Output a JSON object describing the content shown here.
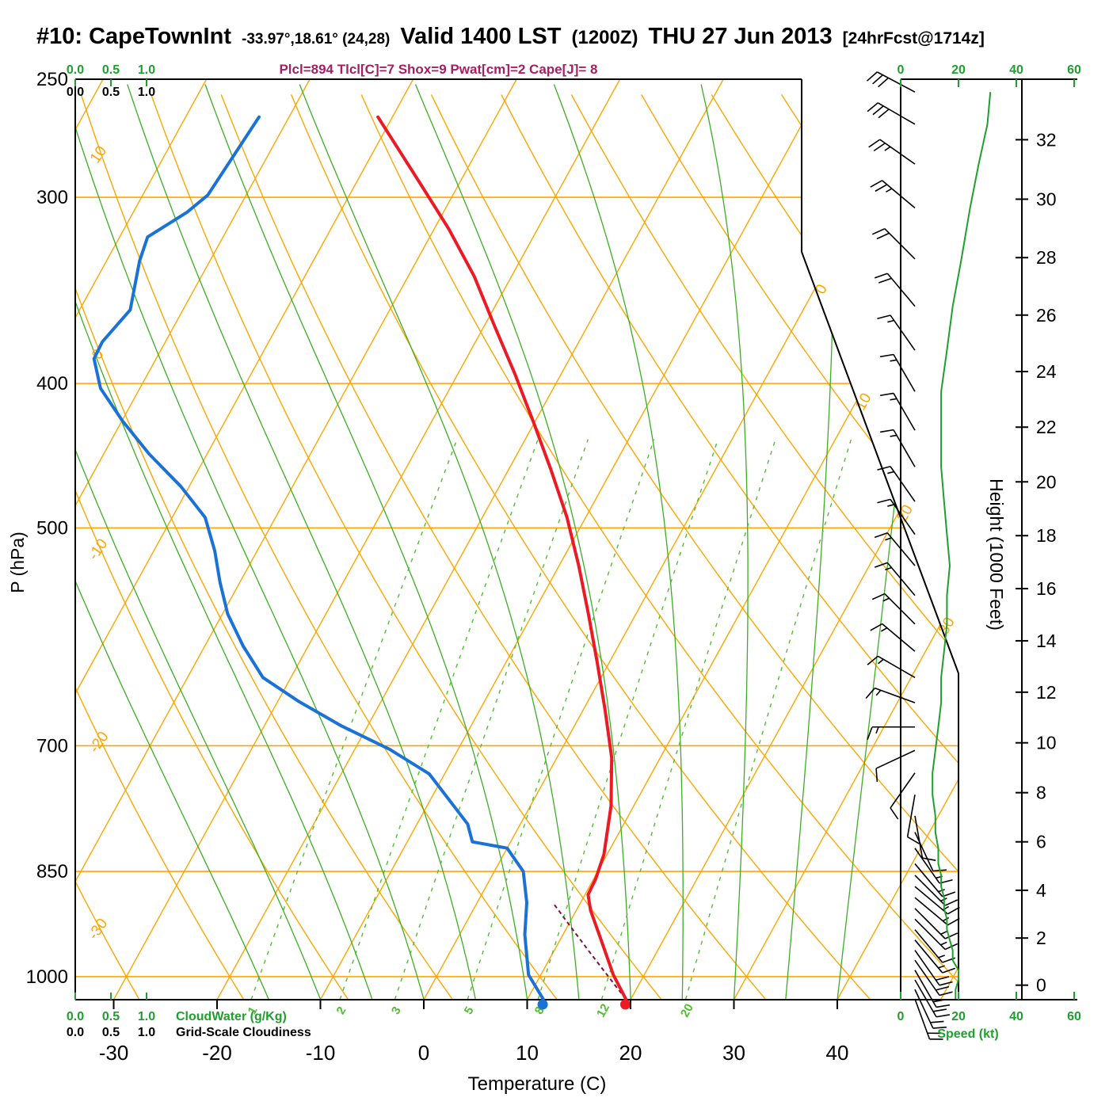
{
  "header": {
    "station": "#10: CapeTownInt",
    "coords": "-33.97°,18.61° (24,28)",
    "valid": "Valid 1400 LST",
    "valid_z": "(1200Z)",
    "date": "THU 27 Jun 2013",
    "fcst_tag": "[24hrFcst@1714z]",
    "indices": "Plcl=894 Tlcl[C]=7 Shox=9 Pwat[cm]=2 Cape[J]= 8"
  },
  "labels": {
    "pressure_axis": "P (hPa)",
    "temp_axis": "Temperature (C)",
    "height_axis": "Height (1000 Feet)",
    "speed_axis": "Speed (kt)",
    "cloudwater": "CloudWater (g/Kg)",
    "cloudiness": "Grid-Scale Cloudiness"
  },
  "colors": {
    "grid_orange": "#FFA500",
    "moist_green": "#3BAE23",
    "mix_green": "#52BE33",
    "temp_red": "#EB1A24",
    "dew_blue": "#1B72D6",
    "indices_magenta": "#A81E60",
    "parcel_maroon": "#7A1240",
    "speed_green": "#1FA02E",
    "axis_black": "#000000"
  },
  "chart_data": {
    "type": "line",
    "subtype": "skewT-logP-sounding",
    "title": "#10: CapeTownInt Valid 1400 LST (1200Z) THU 27 Jun 2013",
    "pressure_ticks_hpa": [
      250,
      300,
      400,
      500,
      700,
      850,
      1000
    ],
    "temp_ticks_c": [
      -30,
      -20,
      -10,
      0,
      10,
      20,
      30,
      40
    ],
    "height_ticks_kft": [
      0,
      2,
      4,
      6,
      8,
      10,
      12,
      14,
      16,
      18,
      20,
      22,
      24,
      26,
      28,
      30,
      32
    ],
    "speed_ticks_kt": [
      0,
      20,
      40,
      60
    ],
    "cloud_scale_ticks": [
      "0.0",
      "0.5",
      "1.0"
    ],
    "isotherm_labels_right_c": [
      0,
      10,
      20,
      30
    ],
    "dry_adiabat_labels_left_c": [
      10,
      0,
      -10,
      -20,
      -30
    ],
    "mixing_ratio_labels_gkg": [
      1,
      2,
      3,
      5,
      8,
      12,
      20
    ],
    "isotherms_c": {
      "min": -90,
      "max": 50,
      "step": 10
    },
    "dry_adiabats_c": {
      "min": -40,
      "max": 110,
      "step": 10
    },
    "moist_adiabats_c": {
      "min": -15,
      "max": 40,
      "step": 5
    },
    "pressure_range_hpa": [
      250,
      1036
    ],
    "surface_pressure_hpa": 1035,
    "surface_temp_c": 19.5,
    "surface_dewpoint_c": 11.5,
    "lcl_pressure_hpa": 894,
    "lcl_temp_c": 7,
    "temperature_profile_p_t": [
      [
        1035,
        19.5
      ],
      [
        997,
        17.0
      ],
      [
        937,
        13.5
      ],
      [
        903,
        11.4
      ],
      [
        881,
        10.3
      ],
      [
        860,
        10.2
      ],
      [
        828,
        9.7
      ],
      [
        768,
        7.8
      ],
      [
        713,
        5.3
      ],
      [
        662,
        2.1
      ],
      [
        615,
        -1.2
      ],
      [
        571,
        -4.6
      ],
      [
        530,
        -8.1
      ],
      [
        492,
        -11.8
      ],
      [
        457,
        -15.9
      ],
      [
        424,
        -20.2
      ],
      [
        394,
        -24.5
      ],
      [
        366,
        -29.0
      ],
      [
        339,
        -33.6
      ],
      [
        315,
        -38.6
      ],
      [
        292,
        -44.2
      ],
      [
        265,
        -51.4
      ]
    ],
    "dewpoint_profile_p_t": [
      [
        1035,
        11.5
      ],
      [
        997,
        8.8
      ],
      [
        937,
        6.3
      ],
      [
        892,
        4.8
      ],
      [
        850,
        2.8
      ],
      [
        820,
        0.0
      ],
      [
        812,
        -3.7
      ],
      [
        790,
        -5.1
      ],
      [
        731,
        -11.5
      ],
      [
        704,
        -16.6
      ],
      [
        679,
        -22.5
      ],
      [
        654,
        -27.9
      ],
      [
        630,
        -32.7
      ],
      [
        600,
        -36.3
      ],
      [
        571,
        -39.5
      ],
      [
        544,
        -41.9
      ],
      [
        518,
        -44.1
      ],
      [
        492,
        -46.8
      ],
      [
        469,
        -50.8
      ],
      [
        446,
        -55.6
      ],
      [
        424,
        -59.9
      ],
      [
        403,
        -63.8
      ],
      [
        385,
        -66.0
      ],
      [
        375,
        -66.1
      ],
      [
        357,
        -65.1
      ],
      [
        331,
        -66.8
      ],
      [
        319,
        -67.3
      ],
      [
        307,
        -64.8
      ],
      [
        299,
        -63.7
      ],
      [
        265,
        -62.9
      ]
    ],
    "winds_p_dir_spd": [
      [
        1035,
        160,
        19
      ],
      [
        1020,
        155,
        19
      ],
      [
        1005,
        150,
        20
      ],
      [
        990,
        150,
        20
      ],
      [
        975,
        145,
        18
      ],
      [
        960,
        145,
        18
      ],
      [
        945,
        140,
        17
      ],
      [
        930,
        140,
        16
      ],
      [
        915,
        135,
        16
      ],
      [
        900,
        135,
        15
      ],
      [
        885,
        130,
        15
      ],
      [
        870,
        130,
        14
      ],
      [
        855,
        135,
        14
      ],
      [
        840,
        140,
        13
      ],
      [
        820,
        145,
        13
      ],
      [
        800,
        155,
        12
      ],
      [
        780,
        170,
        12
      ],
      [
        755,
        190,
        11
      ],
      [
        730,
        215,
        11
      ],
      [
        705,
        245,
        12
      ],
      [
        680,
        270,
        13
      ],
      [
        655,
        290,
        14
      ],
      [
        630,
        300,
        14
      ],
      [
        605,
        310,
        15
      ],
      [
        580,
        315,
        16
      ],
      [
        555,
        320,
        16
      ],
      [
        530,
        320,
        17
      ],
      [
        505,
        325,
        16
      ],
      [
        480,
        325,
        15
      ],
      [
        455,
        330,
        14
      ],
      [
        430,
        330,
        14
      ],
      [
        405,
        330,
        14
      ],
      [
        380,
        325,
        16
      ],
      [
        355,
        320,
        18
      ],
      [
        330,
        315,
        21
      ],
      [
        305,
        310,
        24
      ],
      [
        285,
        305,
        27
      ],
      [
        268,
        300,
        30
      ],
      [
        255,
        298,
        31
      ]
    ]
  }
}
